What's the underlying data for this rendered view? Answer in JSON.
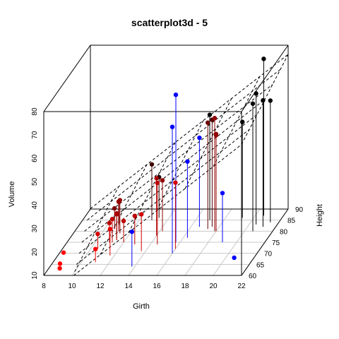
{
  "chart_data": {
    "type": "scatter",
    "title": "scatterplot3d - 5",
    "xlabel": "Girth",
    "ylabel": "Height",
    "zlabel": "Volume",
    "xlim": [
      8,
      22
    ],
    "ylim": [
      60,
      90
    ],
    "zlim": [
      10,
      80
    ],
    "x_ticks": [
      "8",
      "10",
      "12",
      "14",
      "16",
      "18",
      "20",
      "22"
    ],
    "y_ticks": [
      "60",
      "65",
      "70",
      "75",
      "80",
      "85",
      "90"
    ],
    "z_ticks": [
      "10",
      "20",
      "30",
      "40",
      "50",
      "60",
      "70",
      "80"
    ],
    "grid": true,
    "point_style": "filled circle with vertical drop line to the base plane, colored by height (red low to black high), highlighted points in blue",
    "regression_plane": "Volume = -57.99 + 4.708 * Girth + 0.339 * Height",
    "points": [
      {
        "girth": 8.3,
        "height": 70,
        "volume": 10.3,
        "color": "#ff0000"
      },
      {
        "girth": 8.6,
        "height": 65,
        "volume": 10.3,
        "color": "#ff0000"
      },
      {
        "girth": 8.8,
        "height": 63,
        "volume": 10.2,
        "color": "#ff0000"
      },
      {
        "girth": 10.5,
        "height": 72,
        "volume": 16.4,
        "color": "#d40000"
      },
      {
        "girth": 10.7,
        "height": 81,
        "volume": 18.8,
        "color": "#7f0000"
      },
      {
        "girth": 10.8,
        "height": 83,
        "volume": 19.7,
        "color": "#6a0000"
      },
      {
        "girth": 11.0,
        "height": 66,
        "volume": 15.6,
        "color": "#ff0000"
      },
      {
        "girth": 11.0,
        "height": 75,
        "volume": 18.2,
        "color": "#bf0000"
      },
      {
        "girth": 11.1,
        "height": 80,
        "volume": 22.6,
        "color": "#950000"
      },
      {
        "girth": 11.2,
        "height": 75,
        "volume": 19.9,
        "color": "#bf0000"
      },
      {
        "girth": 11.3,
        "height": 79,
        "volume": 24.2,
        "color": "#950000"
      },
      {
        "girth": 11.4,
        "height": 76,
        "volume": 21.0,
        "color": "#aa0000"
      },
      {
        "girth": 11.4,
        "height": 76,
        "volume": 21.4,
        "color": "#aa0000"
      },
      {
        "girth": 11.7,
        "height": 69,
        "volume": 21.3,
        "color": "#e90000"
      },
      {
        "girth": 12.0,
        "height": 75,
        "volume": 19.1,
        "color": "#bf0000"
      },
      {
        "girth": 12.9,
        "height": 74,
        "volume": 22.2,
        "color": "#bf0000"
      },
      {
        "girth": 12.9,
        "height": 85,
        "volume": 33.8,
        "color": "#400000"
      },
      {
        "girth": 13.3,
        "height": 86,
        "volume": 27.4,
        "color": "#2a0000"
      },
      {
        "girth": 13.7,
        "height": 71,
        "volume": 25.7,
        "color": "#d40000"
      },
      {
        "girth": 13.8,
        "height": 64,
        "volume": 24.9,
        "color": "#0000ff"
      },
      {
        "girth": 14.0,
        "height": 78,
        "volume": 34.5,
        "color": "#aa0000"
      },
      {
        "girth": 14.2,
        "height": 80,
        "volume": 31.7,
        "color": "#950000"
      },
      {
        "girth": 14.5,
        "height": 74,
        "volume": 36.3,
        "color": "#bf0000"
      },
      {
        "girth": 16.0,
        "height": 72,
        "volume": 38.3,
        "color": "#d40000"
      },
      {
        "girth": 16.3,
        "height": 77,
        "volume": 42.6,
        "color": "#0000ff"
      },
      {
        "girth": 17.3,
        "height": 81,
        "volume": 55.4,
        "color": "#6a0000"
      },
      {
        "girth": 17.5,
        "height": 82,
        "volume": 55.7,
        "color": "#550000"
      },
      {
        "girth": 17.9,
        "height": 80,
        "volume": 58.3,
        "color": "#950000"
      },
      {
        "girth": 18.0,
        "height": 80,
        "volume": 51.5,
        "color": "#950000"
      },
      {
        "girth": 18.0,
        "height": 80,
        "volume": 51.0,
        "color": "#950000"
      },
      {
        "girth": 20.6,
        "height": 87,
        "volume": 77.0,
        "color": "#000000"
      }
    ],
    "extra_points": [
      {
        "girth": 19.0,
        "height": 75,
        "volume": 31.0,
        "color": "#0000ff"
      },
      {
        "girth": 20.6,
        "height": 68,
        "volume": 10.0,
        "color": "#0000ff"
      },
      {
        "girth": 16.0,
        "height": 70,
        "volume": 64.0,
        "color": "#0000ff"
      },
      {
        "girth": 15.7,
        "height": 75,
        "volume": 73.0,
        "color": "#0000ff"
      },
      {
        "girth": 16.6,
        "height": 82,
        "volume": 48.0,
        "color": "#0000ff"
      },
      {
        "girth": 21.1,
        "height": 82,
        "volume": 64.0,
        "color": "#000000"
      },
      {
        "girth": 20.6,
        "height": 80,
        "volume": 64.5,
        "color": "#000000"
      },
      {
        "girth": 20.5,
        "height": 83,
        "volume": 66.0,
        "color": "#000000"
      },
      {
        "girth": 21.4,
        "height": 84,
        "volume": 62.0,
        "color": "#000000"
      },
      {
        "girth": 19.2,
        "height": 86,
        "volume": 51.0,
        "color": "#000000"
      },
      {
        "girth": 17.0,
        "height": 85,
        "volume": 55.0,
        "color": "#000000"
      }
    ]
  }
}
